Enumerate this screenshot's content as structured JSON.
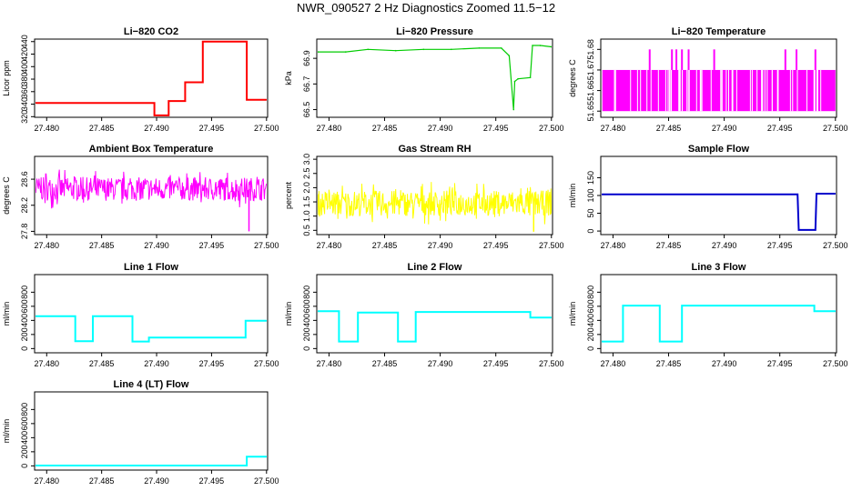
{
  "page": {
    "title": "NWR_090527  2 Hz Diagnostics Zoomed 11.5−12"
  },
  "chart_data": [
    {
      "id": "co2",
      "type": "line",
      "title": "Li−820 CO2",
      "ylabel": "Licor ppm",
      "xlim": [
        27.4789,
        27.5001
      ],
      "ylim": [
        319,
        444
      ],
      "xticks": [
        "27.480",
        "27.485",
        "27.490",
        "27.495",
        "27.500"
      ],
      "xtick_values": [
        27.48,
        27.485,
        27.49,
        27.495,
        27.5
      ],
      "yticks": [
        "320",
        "340",
        "360",
        "380",
        "400",
        "420",
        "440"
      ],
      "ytick_values": [
        320,
        340,
        360,
        380,
        400,
        420,
        440
      ],
      "color": "#ff0000",
      "style": "step",
      "x": [
        27.479,
        27.4898,
        27.4898,
        27.4911,
        27.4911,
        27.4926,
        27.4926,
        27.4942,
        27.4942,
        27.4982,
        27.4982,
        27.5
      ],
      "y": [
        342,
        342,
        322,
        322,
        345,
        345,
        375,
        375,
        440,
        440,
        347,
        347
      ]
    },
    {
      "id": "pressure",
      "type": "line",
      "title": "Li−820 Pressure",
      "ylabel": "kPa",
      "xlim": [
        27.4789,
        27.5001
      ],
      "ylim": [
        66.44,
        67.05
      ],
      "xticks": [
        "27.480",
        "27.485",
        "27.490",
        "27.495",
        "27.500"
      ],
      "xtick_values": [
        27.48,
        27.485,
        27.49,
        27.495,
        27.5
      ],
      "yticks": [
        "66.5",
        "66.7",
        "66.9"
      ],
      "ytick_values": [
        66.5,
        66.7,
        66.9
      ],
      "color": "#00cc00",
      "style": "line",
      "x": [
        27.479,
        27.4815,
        27.4835,
        27.486,
        27.4885,
        27.491,
        27.4935,
        27.4955,
        27.4962,
        27.4966,
        27.4967,
        27.497,
        27.4981,
        27.4983,
        27.499,
        27.5
      ],
      "y": [
        66.95,
        66.95,
        66.97,
        66.96,
        66.97,
        66.97,
        66.98,
        66.98,
        66.92,
        66.5,
        66.72,
        66.74,
        66.75,
        67.0,
        67.0,
        66.99
      ]
    },
    {
      "id": "licor_temp",
      "type": "line",
      "title": "Li−820 Temperature",
      "ylabel": "degrees C",
      "xlim": [
        27.4789,
        27.5001
      ],
      "ylim": [
        51.647,
        51.685
      ],
      "xticks": [
        "27.480",
        "27.485",
        "27.490",
        "27.495",
        "27.500"
      ],
      "xtick_values": [
        27.48,
        27.485,
        27.49,
        27.495,
        27.5
      ],
      "yticks": [
        "51.65",
        "51.66",
        "51.67",
        "51.68"
      ],
      "ytick_values": [
        51.65,
        51.66,
        51.67,
        51.68
      ],
      "color": "#ff00ff",
      "style": "noise_band",
      "band": [
        51.65,
        51.67
      ],
      "spikes_x": [
        27.4833,
        27.4853,
        27.4857,
        27.4862,
        27.4868,
        27.4891,
        27.4955,
        27.4965,
        27.4982
      ],
      "spike_top": 51.68
    },
    {
      "id": "box_temp",
      "type": "line",
      "title": "Ambient Box Temperature",
      "ylabel": "degrees C",
      "xlim": [
        27.4789,
        27.5001
      ],
      "ylim": [
        27.75,
        28.95
      ],
      "xticks": [
        "27.480",
        "27.485",
        "27.490",
        "27.495",
        "27.500"
      ],
      "xtick_values": [
        27.48,
        27.485,
        27.49,
        27.495,
        27.5
      ],
      "yticks": [
        "27.8",
        "28.2",
        "28.6"
      ],
      "ytick_values": [
        27.8,
        28.2,
        28.6
      ],
      "color": "#ff00ff",
      "style": "noise",
      "mean": 28.45,
      "amp": 0.3,
      "outlier_min": 27.8
    },
    {
      "id": "rh",
      "type": "line",
      "title": "Gas Stream RH",
      "ylabel": "percent",
      "xlim": [
        27.4789,
        27.5001
      ],
      "ylim": [
        0.35,
        3.1
      ],
      "xticks": [
        "27.480",
        "27.485",
        "27.490",
        "27.495",
        "27.500"
      ],
      "xtick_values": [
        27.48,
        27.485,
        27.49,
        27.495,
        27.5
      ],
      "yticks": [
        "0.5",
        "1.0",
        "1.5",
        "2.0",
        "2.5",
        "3.0"
      ],
      "ytick_values": [
        0.5,
        1.0,
        1.5,
        2.0,
        2.5,
        3.0
      ],
      "color": "#ffff00",
      "style": "noise",
      "mean": 1.45,
      "amp": 0.75,
      "outlier_min": 0.45
    },
    {
      "id": "sample_flow",
      "type": "line",
      "title": "Sample Flow",
      "ylabel": "ml/min",
      "xlim": [
        27.4789,
        27.5001
      ],
      "ylim": [
        -10,
        210
      ],
      "xticks": [
        "27.480",
        "27.485",
        "27.490",
        "27.495",
        "27.500"
      ],
      "xtick_values": [
        27.48,
        27.485,
        27.49,
        27.495,
        27.5
      ],
      "yticks": [
        "0",
        "50",
        "100",
        "150"
      ],
      "ytick_values": [
        0,
        50,
        100,
        150
      ],
      "color": "#0000cc",
      "style": "step",
      "x": [
        27.479,
        27.4966,
        27.4967,
        27.4982,
        27.4983,
        27.5
      ],
      "y": [
        103,
        103,
        3,
        3,
        105,
        105
      ]
    },
    {
      "id": "line1",
      "type": "line",
      "title": "Line 1 Flow",
      "ylabel": "ml/min",
      "xlim": [
        27.4789,
        27.5001
      ],
      "ylim": [
        -60,
        1050
      ],
      "xticks": [
        "27.480",
        "27.485",
        "27.490",
        "27.495",
        "27.500"
      ],
      "xtick_values": [
        27.48,
        27.485,
        27.49,
        27.495,
        27.5
      ],
      "yticks": [
        "0",
        "200",
        "400",
        "600",
        "800"
      ],
      "ytick_values": [
        0,
        200,
        400,
        600,
        800
      ],
      "color": "#00ffff",
      "style": "step",
      "x": [
        27.479,
        27.4826,
        27.4826,
        27.4842,
        27.4842,
        27.4878,
        27.4878,
        27.4893,
        27.4893,
        27.4981,
        27.4981,
        27.5
      ],
      "y": [
        460,
        460,
        105,
        105,
        460,
        460,
        100,
        100,
        155,
        155,
        395,
        395
      ]
    },
    {
      "id": "line2",
      "type": "line",
      "title": "Line 2 Flow",
      "ylabel": "ml/min",
      "xlim": [
        27.4789,
        27.5001
      ],
      "ylim": [
        -60,
        1050
      ],
      "xticks": [
        "27.480",
        "27.485",
        "27.490",
        "27.495",
        "27.500"
      ],
      "xtick_values": [
        27.48,
        27.485,
        27.49,
        27.495,
        27.5
      ],
      "yticks": [
        "0",
        "200",
        "400",
        "600",
        "800"
      ],
      "ytick_values": [
        0,
        200,
        400,
        600,
        800
      ],
      "color": "#00ffff",
      "style": "step",
      "x": [
        27.479,
        27.4809,
        27.4809,
        27.4826,
        27.4826,
        27.4862,
        27.4862,
        27.4878,
        27.4878,
        27.4981,
        27.4981,
        27.5
      ],
      "y": [
        530,
        530,
        100,
        100,
        510,
        510,
        100,
        100,
        520,
        520,
        440,
        440
      ]
    },
    {
      "id": "line3",
      "type": "line",
      "title": "Line 3 Flow",
      "ylabel": "ml/min",
      "xlim": [
        27.4789,
        27.5001
      ],
      "ylim": [
        -60,
        1050
      ],
      "xticks": [
        "27.480",
        "27.485",
        "27.490",
        "27.495",
        "27.500"
      ],
      "xtick_values": [
        27.48,
        27.485,
        27.49,
        27.495,
        27.5
      ],
      "yticks": [
        "0",
        "200",
        "400",
        "600",
        "800"
      ],
      "ytick_values": [
        0,
        200,
        400,
        600,
        800
      ],
      "color": "#00ffff",
      "style": "step",
      "x": [
        27.479,
        27.4809,
        27.4809,
        27.4842,
        27.4842,
        27.4862,
        27.4862,
        27.4981,
        27.4981,
        27.5
      ],
      "y": [
        100,
        100,
        610,
        610,
        100,
        100,
        610,
        610,
        530,
        530
      ]
    },
    {
      "id": "line4",
      "type": "line",
      "title": "Line 4 (LT) Flow",
      "ylabel": "ml/min",
      "xlim": [
        27.4789,
        27.5001
      ],
      "ylim": [
        -60,
        1050
      ],
      "xticks": [
        "27.480",
        "27.485",
        "27.490",
        "27.495",
        "27.500"
      ],
      "xtick_values": [
        27.48,
        27.485,
        27.49,
        27.495,
        27.5
      ],
      "yticks": [
        "0",
        "200",
        "400",
        "600",
        "800"
      ],
      "ytick_values": [
        0,
        200,
        400,
        600,
        800
      ],
      "color": "#00ffff",
      "style": "step",
      "x": [
        27.479,
        27.4982,
        27.4982,
        27.5
      ],
      "y": [
        5,
        5,
        130,
        130
      ]
    }
  ]
}
